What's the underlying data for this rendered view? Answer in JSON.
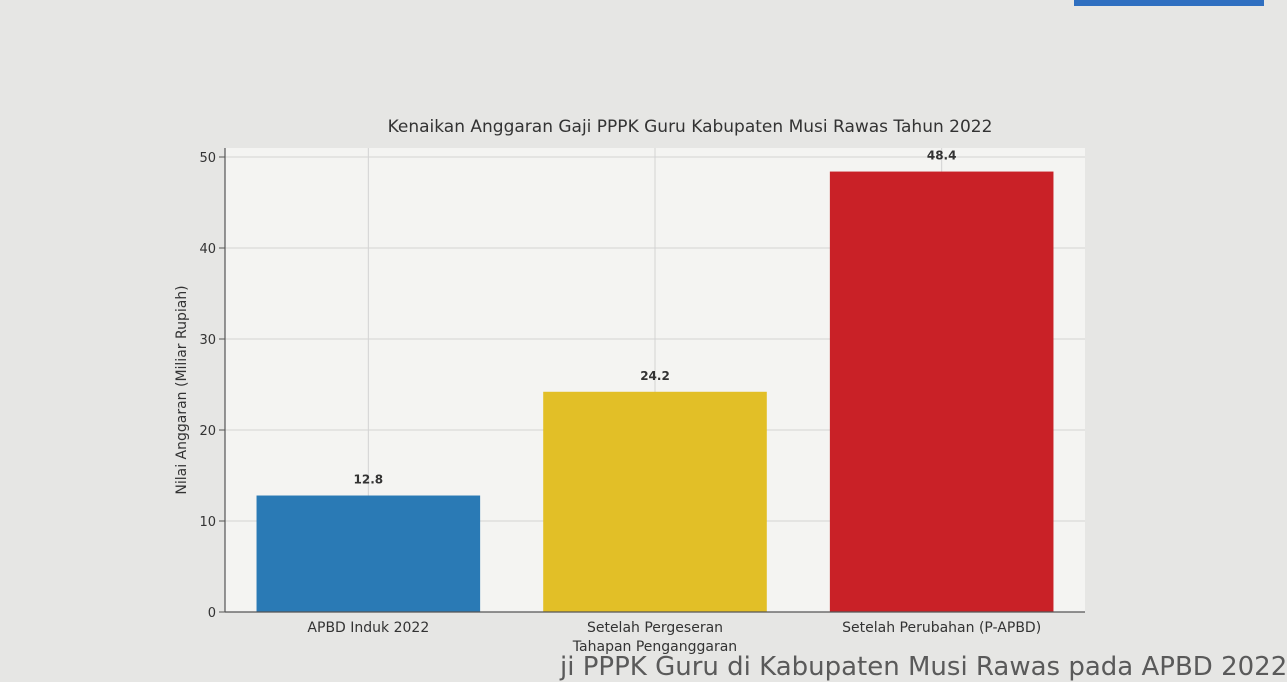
{
  "colors": {
    "background": "#e6e6e4",
    "grid": "#d3d3d3",
    "axis": "#555555",
    "text": "#333333",
    "bars": [
      "#2a7ab5",
      "#e2bf27",
      "#c92127"
    ]
  },
  "caption_partial": "ji PPPK Guru di Kabupaten Musi Rawas pada APBD 2022",
  "chart_data": {
    "type": "bar",
    "title": "Kenaikan Anggaran Gaji PPPK Guru Kabupaten Musi Rawas Tahun 2022",
    "xlabel": "",
    "ylabel": "Nilai Anggaran (Miliar Rupiah)",
    "categories": [
      [
        "APBD Induk 2022"
      ],
      [
        "Setelah Pergeseran",
        "Tahapan Penganggaran"
      ],
      [
        "Setelah Perubahan (P-APBD)"
      ]
    ],
    "values": [
      12.8,
      24.2,
      48.4
    ],
    "data_labels": [
      "12.8",
      "24.2",
      "48.4"
    ],
    "ylim": [
      0,
      50
    ],
    "yticks": [
      0,
      10,
      20,
      30,
      40,
      50
    ],
    "grid": true,
    "legend": "none"
  }
}
